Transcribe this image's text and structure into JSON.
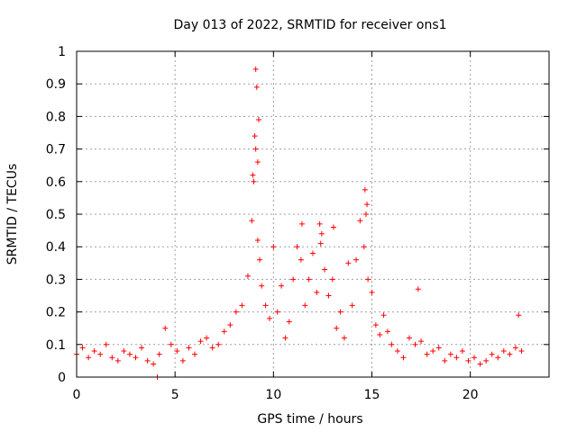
{
  "chart_data": {
    "type": "scatter",
    "title": "Day 013 of 2022, SRMTID for receiver ons1",
    "xlabel": "GPS time / hours",
    "ylabel": "SRMTID / TECUs",
    "xlim": [
      0,
      24
    ],
    "ylim": [
      0,
      1
    ],
    "xticks": [
      0,
      5,
      10,
      15,
      20
    ],
    "xtick_labels": [
      "0",
      "5",
      "10",
      "15",
      "20"
    ],
    "yticks": [
      0,
      0.1,
      0.2,
      0.3,
      0.4,
      0.5,
      0.6,
      0.7,
      0.8,
      0.9,
      1
    ],
    "ytick_labels": [
      "0",
      "0.1",
      "0.2",
      "0.3",
      "0.4",
      "0.5",
      "0.6",
      "0.7",
      "0.8",
      "0.9",
      "1"
    ],
    "grid": true,
    "marker": "+",
    "series": [
      {
        "name": "SRMTID",
        "color": "#ff0000",
        "x": [
          0.0,
          0.3,
          0.6,
          0.9,
          1.2,
          1.5,
          1.8,
          2.1,
          2.4,
          2.7,
          3.0,
          3.3,
          3.6,
          3.9,
          4.2,
          4.5,
          4.8,
          5.1,
          5.4,
          5.7,
          6.0,
          6.3,
          6.6,
          6.9,
          7.2,
          7.5,
          7.8,
          8.1,
          8.4,
          8.7,
          8.9,
          9.0,
          9.1,
          9.2,
          9.3,
          9.4,
          9.6,
          9.8,
          10.0,
          10.2,
          10.4,
          10.6,
          10.8,
          11.0,
          11.2,
          11.4,
          11.6,
          11.8,
          12.0,
          12.2,
          12.4,
          12.6,
          12.8,
          13.0,
          13.2,
          13.4,
          13.6,
          13.8,
          14.0,
          14.2,
          14.4,
          14.6,
          14.7,
          14.8,
          15.0,
          15.2,
          15.4,
          15.6,
          15.8,
          16.0,
          16.3,
          16.6,
          16.9,
          17.2,
          17.5,
          17.8,
          18.1,
          18.4,
          18.7,
          19.0,
          19.3,
          19.6,
          19.9,
          20.2,
          20.5,
          20.8,
          21.1,
          21.4,
          21.7,
          22.0,
          22.3,
          22.6,
          8.95,
          9.05,
          9.15,
          9.25,
          9.1,
          9.2,
          14.65,
          14.75,
          11.45,
          12.35,
          12.45,
          13.05,
          17.35,
          22.45,
          4.1
        ],
        "y": [
          0.07,
          0.09,
          0.06,
          0.08,
          0.07,
          0.1,
          0.06,
          0.05,
          0.08,
          0.07,
          0.06,
          0.09,
          0.05,
          0.04,
          0.07,
          0.15,
          0.1,
          0.08,
          0.05,
          0.09,
          0.07,
          0.11,
          0.12,
          0.09,
          0.1,
          0.14,
          0.16,
          0.2,
          0.22,
          0.31,
          0.48,
          0.6,
          0.7,
          0.42,
          0.36,
          0.28,
          0.22,
          0.18,
          0.4,
          0.2,
          0.28,
          0.12,
          0.17,
          0.3,
          0.4,
          0.36,
          0.22,
          0.3,
          0.38,
          0.26,
          0.41,
          0.33,
          0.25,
          0.3,
          0.15,
          0.2,
          0.12,
          0.35,
          0.22,
          0.36,
          0.48,
          0.4,
          0.5,
          0.3,
          0.26,
          0.16,
          0.13,
          0.19,
          0.14,
          0.1,
          0.08,
          0.06,
          0.12,
          0.1,
          0.11,
          0.07,
          0.08,
          0.09,
          0.05,
          0.07,
          0.06,
          0.08,
          0.05,
          0.06,
          0.04,
          0.05,
          0.07,
          0.06,
          0.08,
          0.07,
          0.09,
          0.08,
          0.62,
          0.74,
          0.89,
          0.79,
          0.945,
          0.66,
          0.575,
          0.53,
          0.47,
          0.47,
          0.44,
          0.46,
          0.27,
          0.19,
          0.0
        ]
      }
    ]
  }
}
